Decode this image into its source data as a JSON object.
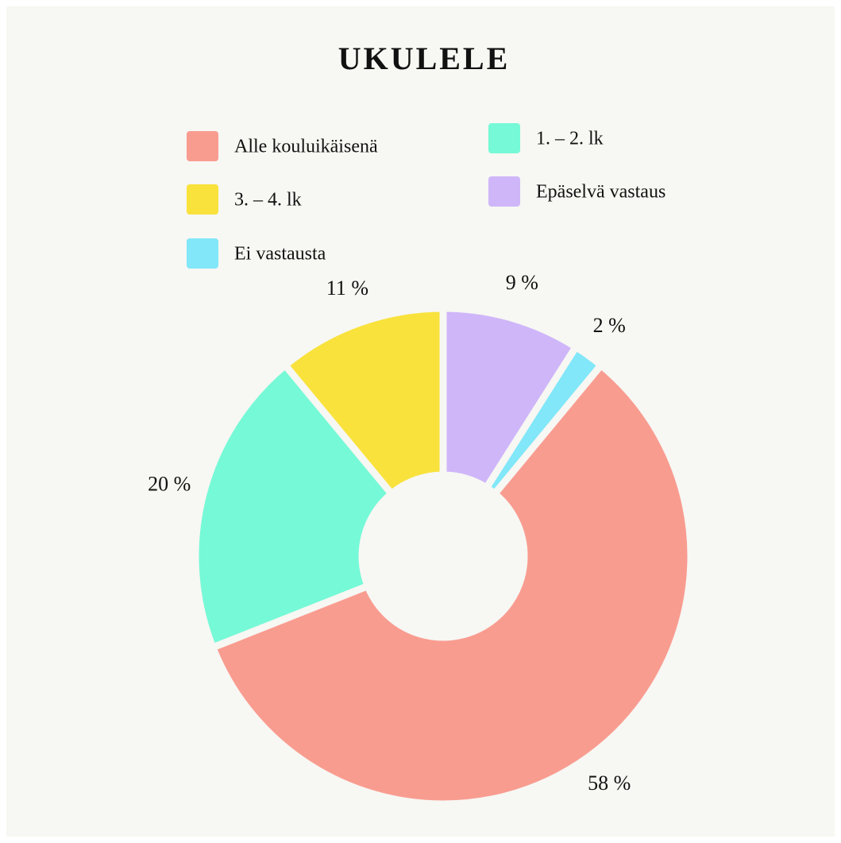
{
  "chart_data": {
    "type": "donut",
    "title": "UKULELE",
    "categories": [
      "Alle kouluikäisenä",
      "1. – 2. lk",
      "3. – 4. lk",
      "Epäselvä vastaus",
      "Ei vastausta"
    ],
    "values": [
      58,
      20,
      11,
      9,
      2
    ],
    "value_labels": [
      "58 %",
      "20 %",
      "11 %",
      "9 %",
      "2 %"
    ],
    "colors": [
      "#f99c90",
      "#76f9d6",
      "#f9e23b",
      "#cfb6f9",
      "#81e7f9"
    ]
  }
}
